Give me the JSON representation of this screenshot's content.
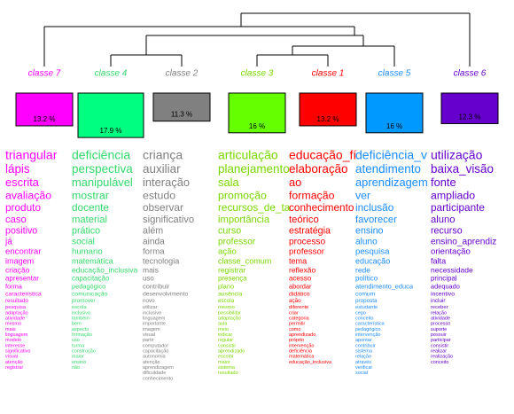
{
  "chart_data": {
    "type": "dendrogram",
    "classes": [
      {
        "name": "classe 7",
        "color": "#ff00ff",
        "text_color": "#ff00ff",
        "value": 13.2,
        "value_label": "13.2 %",
        "words": [
          "triangular",
          "lápis",
          "escrita",
          "avaliação",
          "produto",
          "caso",
          "positivo",
          "já",
          "encontrar",
          "imagem",
          "criação",
          "apresentar",
          "forma",
          "característica",
          "resultado",
          "pesquisa",
          "adaptação",
          "atividade",
          "mesmo",
          "mais",
          "linguagem",
          "modelo",
          "interesse",
          "significativo",
          "visual",
          "atenção",
          "registrar"
        ]
      },
      {
        "name": "classe 4",
        "color": "#00ff80",
        "text_color": "#33d96b",
        "value": 17.9,
        "value_label": "17.9 %",
        "words": [
          "deficiência",
          "perspectiva",
          "manipulável",
          "mostrar",
          "docente",
          "material",
          "prático",
          "social",
          "humano",
          "matemática",
          "educação_inclusiva",
          "capacitação",
          "pedagógico",
          "comunicação",
          "promover",
          "escola",
          "inclusivo",
          "também",
          "bem",
          "aspecto",
          "formação",
          "uso",
          "turma",
          "construção",
          "maior",
          "ensino",
          "não"
        ]
      },
      {
        "name": "classe 2",
        "color": "#808080",
        "text_color": "#808080",
        "value": 11.3,
        "value_label": "11.3 %",
        "words": [
          "criança",
          "auxiliar",
          "interação",
          "estudo",
          "observar",
          "significativo",
          "além",
          "ainda",
          "forma",
          "tecnologia",
          "mais",
          "uso",
          "contribuir",
          "desenvolvimento",
          "novo",
          "utilizar",
          "inclusivo",
          "linguagem",
          "importante",
          "imagem",
          "visual",
          "partir",
          "computador",
          "capacitação",
          "autonomia",
          "atenção",
          "aprendizagem",
          "dificuldade",
          "conhecimento"
        ]
      },
      {
        "name": "classe 3",
        "color": "#66ff00",
        "text_color": "#7ad600",
        "value": 16,
        "value_label": "16 %",
        "words": [
          "articulação",
          "planejamento",
          "sala",
          "promoção",
          "recursos_de_ta",
          "importância",
          "curso",
          "professor",
          "ação",
          "classe_comum",
          "registrar",
          "presença",
          "plano",
          "ausência",
          "escola",
          "mesmo",
          "possibilitar",
          "adaptação",
          "aula",
          "meio",
          "indicar",
          "regular",
          "consistir",
          "aprendizado",
          "escolar",
          "maior",
          "sistema",
          "resultado"
        ]
      },
      {
        "name": "classe 1",
        "color": "#ff0000",
        "text_color": "#ff0000",
        "value": 13.2,
        "value_label": "13.2 %",
        "words": [
          "educação_fí",
          "elaboração",
          "ao",
          "formação",
          "conhecimento",
          "teórico",
          "estratégia",
          "processo",
          "professor",
          "tema",
          "reflexão",
          "acesso",
          "abordar",
          "didático",
          "ação",
          "diferente",
          "criar",
          "categoria",
          "permitir",
          "como",
          "aprendizado",
          "próprio",
          "intervenção",
          "deficiência",
          "matemática",
          "educação_inclusiva"
        ]
      },
      {
        "name": "classe 5",
        "color": "#0099ff",
        "text_color": "#1a8cff",
        "value": 16,
        "value_label": "16 %",
        "words": [
          "deficiência_v",
          "atendimento",
          "aprendizagem",
          "ver",
          "inclusão",
          "favorecer",
          "ensino",
          "aluno",
          "pesquisa",
          "educação",
          "rede",
          "político",
          "atendimento_educa",
          "comum",
          "proposta",
          "estudante",
          "cego",
          "conceito",
          "característica",
          "pedagógico",
          "intervenção",
          "apontar",
          "contribuir",
          "sistema",
          "relação",
          "através",
          "verificar",
          "social"
        ]
      },
      {
        "name": "classe 6",
        "color": "#6600cc",
        "text_color": "#6600cc",
        "value": 12.3,
        "value_label": "12.3 %",
        "words": [
          "utilização",
          "baixa_visão",
          "fonte",
          "ampliado",
          "participante",
          "aluno",
          "recurso",
          "ensino_aprendiz",
          "orientação",
          "falta",
          "necessidade",
          "principal",
          "adequado",
          "incentivo",
          "incluir",
          "receber",
          "relação",
          "atividade",
          "processo",
          "suporte",
          "possuir",
          "participar",
          "consistir",
          "realizar",
          "realização",
          "conceito"
        ]
      }
    ]
  }
}
